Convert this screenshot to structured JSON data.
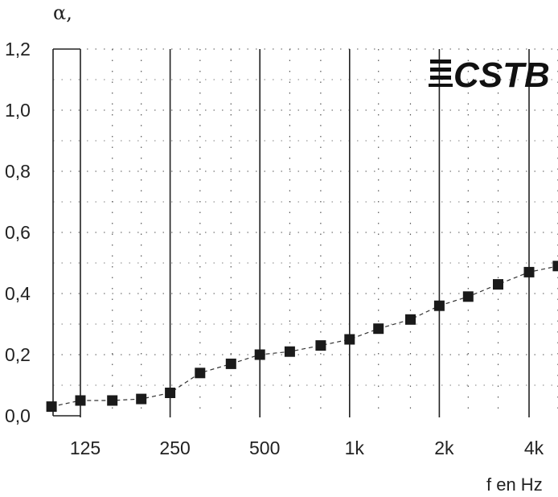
{
  "chart_data": {
    "type": "scatter",
    "ylabel": "α,",
    "xlabel": "f en Hz",
    "x_scale": "log",
    "ylim": [
      0,
      1.2
    ],
    "y_ticks": [
      "0,0",
      "0,2",
      "0,4",
      "0,6",
      "0,8",
      "1,0",
      "1,2"
    ],
    "x_ticks": [
      "125",
      "250",
      "500",
      "1k",
      "2k",
      "4k"
    ],
    "grid": "dotted",
    "series": [
      {
        "x": [
          100,
          125,
          160,
          200,
          250,
          315,
          400,
          500,
          630,
          800,
          1000,
          1250,
          1600,
          2000,
          2500,
          3150,
          4000,
          5000
        ],
        "values": [
          0.03,
          0.05,
          0.05,
          0.055,
          0.075,
          0.14,
          0.17,
          0.2,
          0.21,
          0.23,
          0.25,
          0.285,
          0.315,
          0.36,
          0.39,
          0.43,
          0.47,
          0.49
        ]
      }
    ],
    "logo": "CSTB"
  }
}
